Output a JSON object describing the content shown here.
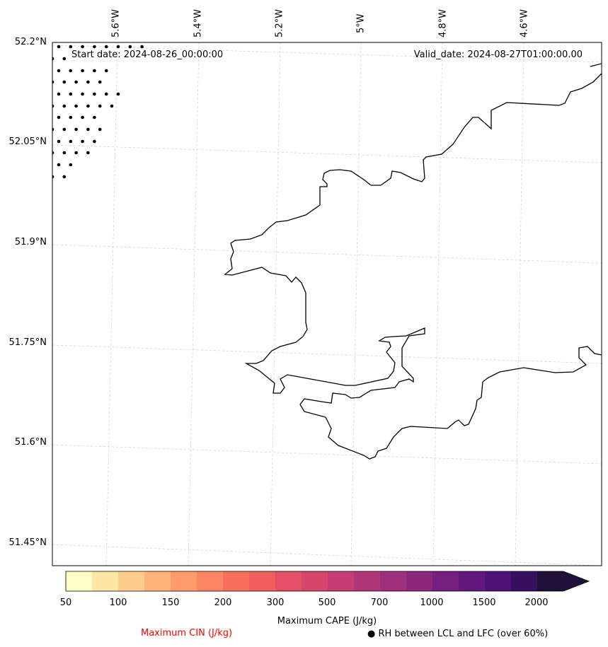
{
  "map": {
    "start_date_label": "Start date: 2024-08-26_00:00:00",
    "valid_date_label": "Valid_date: 2024-08-27T01:00:00.00",
    "longitude_labels": [
      "5.6°W",
      "5.4°W",
      "5.2°W",
      "5°W",
      "4.8°W",
      "4.6°W"
    ],
    "latitude_labels": [
      "52.2°N",
      "52.05°N",
      "51.9°N",
      "51.75°N",
      "51.6°N",
      "51.45°N"
    ],
    "coastline_color": "#000000",
    "gridline_color": "#cccccc",
    "stipple_marker": "dot",
    "stipple_region": "north-west corner"
  },
  "colorbar": {
    "label": "Maximum CAPE (J/kg)",
    "tick_labels": [
      "50",
      "100",
      "150",
      "200",
      "300",
      "500",
      "700",
      "1000",
      "1500",
      "2000"
    ],
    "colors": [
      "#fdffc4",
      "#fde6a4",
      "#fecd8c",
      "#feb479",
      "#fe9b6b",
      "#fb8661",
      "#f7705c",
      "#f05f5d",
      "#e34f64",
      "#d6456c",
      "#c53d73",
      "#b13678",
      "#9e2f7d",
      "#8b287e",
      "#771f7f",
      "#62197e",
      "#4e1176",
      "#360f5e",
      "#20113a"
    ],
    "extend": "max"
  },
  "legend": {
    "cin_label": "Maximum CIN (J/kg)",
    "cin_color": "#ff0000",
    "rh_marker": "●",
    "rh_label": "RH between LCL and LFC (over 60%)"
  }
}
